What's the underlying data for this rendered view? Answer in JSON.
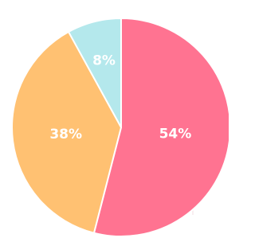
{
  "chart_data": {
    "type": "pie",
    "values": [
      54,
      38,
      8
    ],
    "value_labels": [
      "54%",
      "38%",
      "8%"
    ],
    "colors": [
      "#ff7391",
      "#ffc172",
      "#b4e8ec"
    ]
  }
}
